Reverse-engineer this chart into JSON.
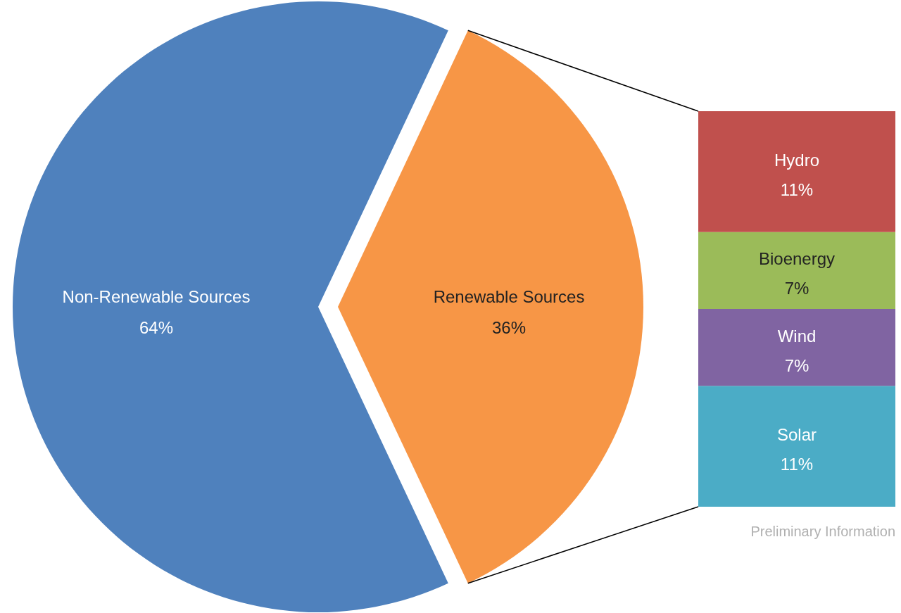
{
  "chart_data": [
    {
      "type": "pie",
      "categories": [
        "Non-Renewable Sources",
        "Renewable Sources"
      ],
      "values": [
        64,
        36
      ],
      "value_labels": [
        "64%",
        "36%"
      ],
      "colors": [
        "#4f81bd",
        "#f79646"
      ]
    },
    {
      "type": "bar",
      "stacked": true,
      "categories": [
        null
      ],
      "series": [
        {
          "name": "Solar",
          "color": "#4bacc6",
          "values": [
            11
          ],
          "value_labels": [
            "11%"
          ]
        },
        {
          "name": "Wind",
          "color": "#8064a2",
          "values": [
            7
          ],
          "value_labels": [
            "7%"
          ]
        },
        {
          "name": "Bioenergy",
          "color": "#9bbb59",
          "values": [
            7
          ],
          "value_labels": [
            "7%"
          ]
        },
        {
          "name": "Hydro",
          "color": "#c0504d",
          "values": [
            11
          ],
          "value_labels": [
            "11%"
          ]
        }
      ],
      "annotations": [
        "Preliminary Information"
      ]
    }
  ]
}
